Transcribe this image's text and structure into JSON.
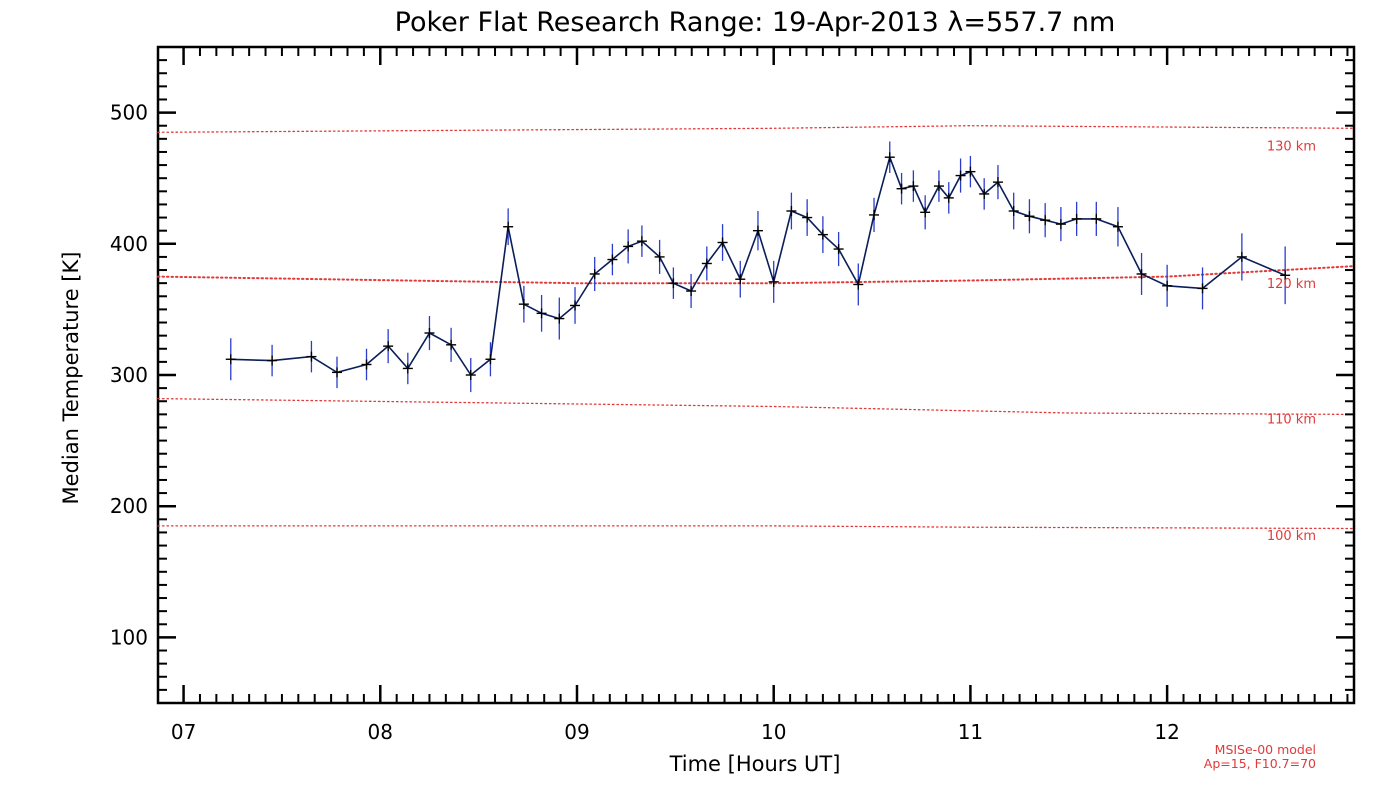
{
  "chart_data": {
    "type": "line",
    "title": "Poker Flat Research Range: 19-Apr-2013 λ=557.7 nm",
    "xlabel": "Time [Hours UT]",
    "ylabel": "Median Temperature [K]",
    "xlim": [
      6.87,
      12.95
    ],
    "ylim": [
      50,
      550
    ],
    "x_ticks": [
      7,
      8,
      9,
      10,
      11,
      12
    ],
    "x_tick_labels": [
      "07",
      "08",
      "09",
      "10",
      "11",
      "12"
    ],
    "y_ticks": [
      100,
      200,
      300,
      400,
      500
    ],
    "y_tick_labels": [
      "100",
      "200",
      "300",
      "400",
      "500"
    ],
    "grid": false,
    "series": [
      {
        "color": "#0a1e5a",
        "errorbar_color": "#2a3dcc",
        "x": [
          7.24,
          7.45,
          7.65,
          7.78,
          7.93,
          8.04,
          8.14,
          8.25,
          8.36,
          8.46,
          8.56,
          8.65,
          8.73,
          8.82,
          8.91,
          8.99,
          9.09,
          9.18,
          9.26,
          9.33,
          9.42,
          9.49,
          9.58,
          9.66,
          9.74,
          9.83,
          9.92,
          10.0,
          10.09,
          10.17,
          10.25,
          10.33,
          10.43,
          10.51,
          10.59,
          10.65,
          10.71,
          10.77,
          10.84,
          10.89,
          10.95,
          11.0,
          11.07,
          11.14,
          11.22,
          11.3,
          11.38,
          11.46,
          11.54,
          11.64,
          11.75,
          11.87,
          12.0,
          12.18,
          12.38,
          12.6
        ],
        "y": [
          312,
          311,
          314,
          302,
          308,
          322,
          305,
          332,
          323,
          300,
          312,
          413,
          354,
          347,
          343,
          353,
          377,
          388,
          398,
          402,
          390,
          370,
          364,
          385,
          401,
          373,
          410,
          371,
          425,
          420,
          407,
          396,
          369,
          422,
          466,
          442,
          444,
          424,
          444,
          435,
          452,
          455,
          438,
          447,
          425,
          421,
          418,
          415,
          419,
          419,
          413,
          377,
          368,
          366,
          390,
          376
        ],
        "error": [
          16,
          12,
          12,
          12,
          12,
          13,
          12,
          13,
          13,
          13,
          13,
          14,
          14,
          14,
          16,
          14,
          13,
          12,
          13,
          12,
          13,
          12,
          13,
          13,
          14,
          14,
          15,
          16,
          14,
          14,
          14,
          13,
          16,
          13,
          12,
          12,
          12,
          13,
          12,
          12,
          13,
          12,
          12,
          13,
          14,
          13,
          13,
          13,
          13,
          13,
          15,
          16,
          16,
          16,
          18,
          22
        ]
      }
    ],
    "reference_lines": [
      {
        "label": "130 km",
        "color": "#e03a3a",
        "x": [
          6.87,
          10.0,
          11.0,
          12.95
        ],
        "y": [
          485,
          488,
          490,
          488
        ]
      },
      {
        "label": "120 km",
        "color": "#e03a3a",
        "x": [
          6.87,
          9.0,
          10.0,
          11.0,
          12.0,
          12.95
        ],
        "y": [
          375,
          370,
          370,
          372,
          375,
          383
        ]
      },
      {
        "label": "110 km",
        "color": "#e03a3a",
        "x": [
          6.87,
          10.0,
          11.5,
          12.95
        ],
        "y": [
          282,
          276,
          271,
          270
        ]
      },
      {
        "label": "100 km",
        "color": "#e03a3a",
        "x": [
          6.87,
          10.0,
          11.0,
          12.95
        ],
        "y": [
          185,
          185,
          184,
          183
        ]
      }
    ],
    "reference_label_positions": [
      475,
      370,
      267,
      178
    ],
    "annotation": [
      "MSISe-00 model",
      "Ap=15, F10.7=70"
    ]
  }
}
